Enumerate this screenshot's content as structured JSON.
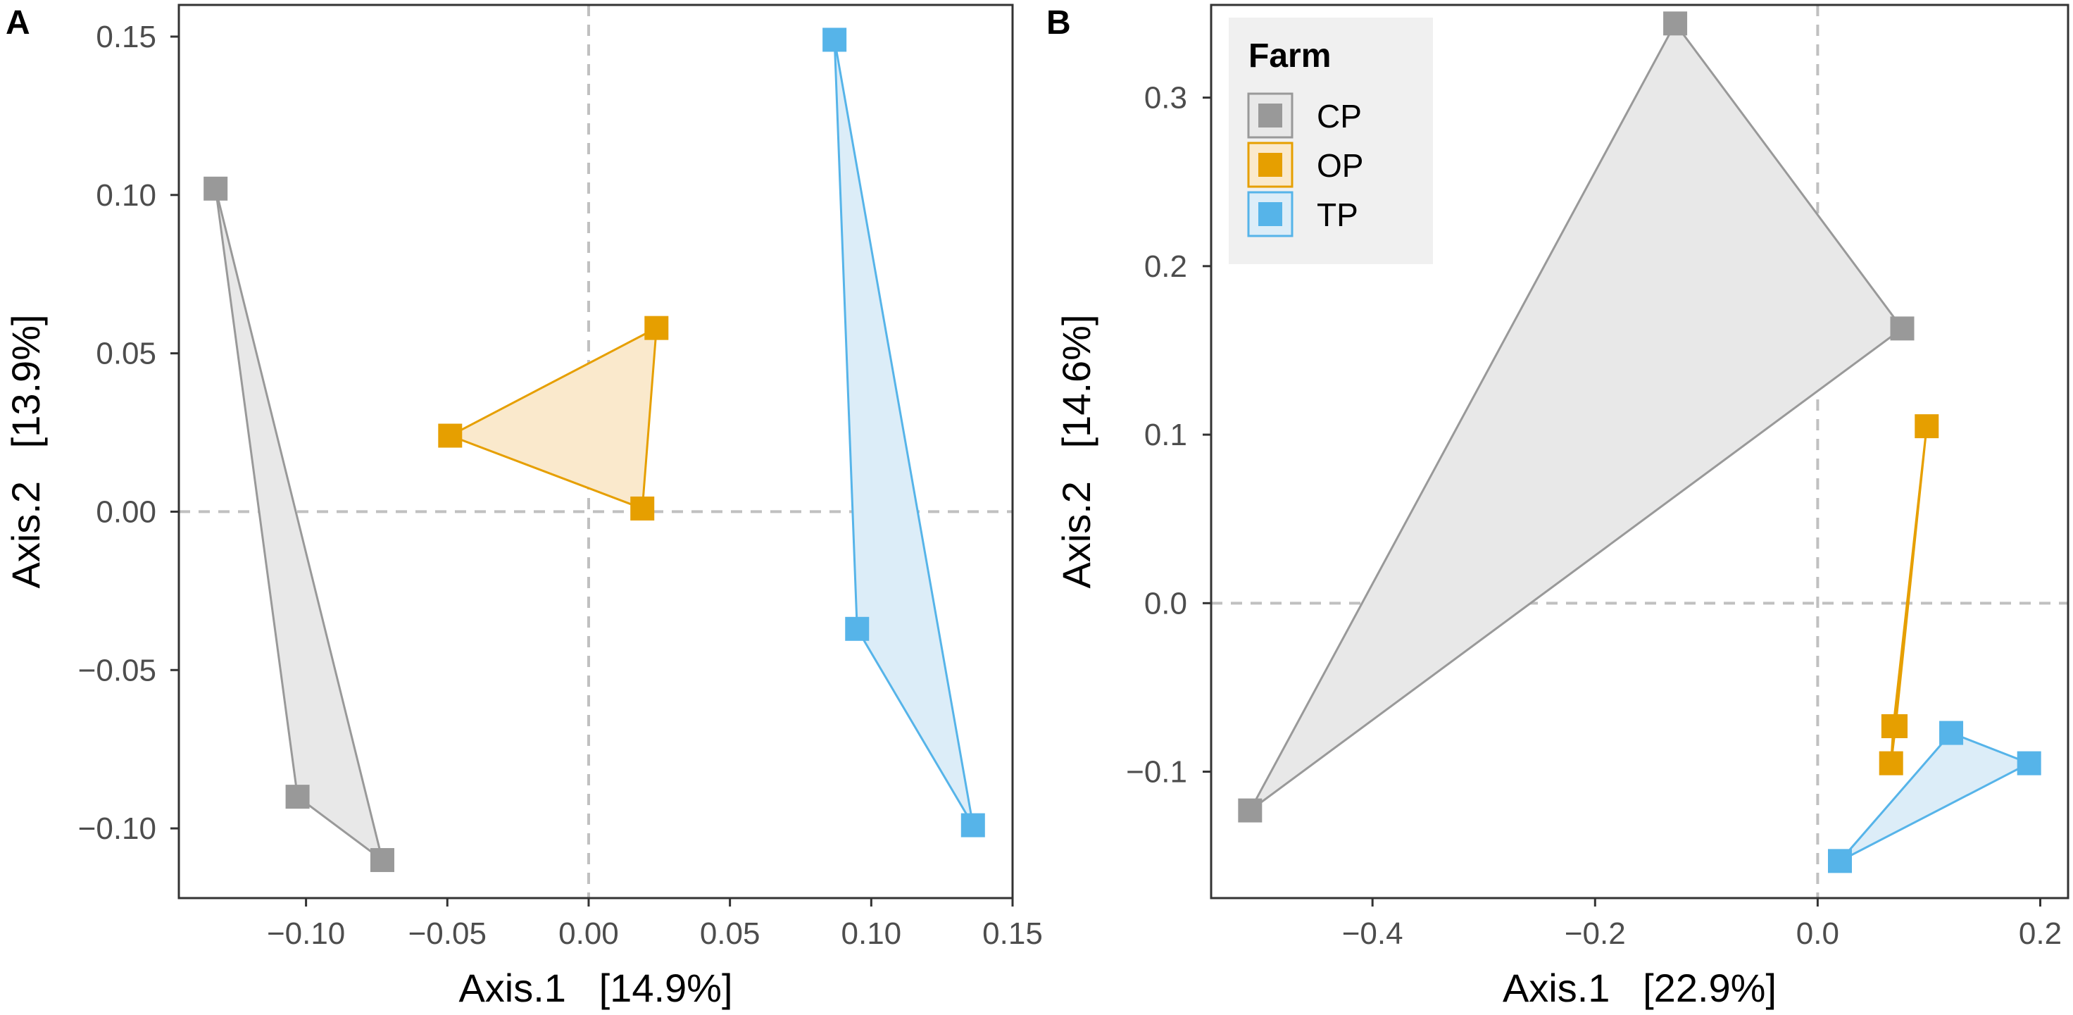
{
  "figure": {
    "legend": {
      "title": "Farm",
      "entries": [
        {
          "key": "CP",
          "label": "CP"
        },
        {
          "key": "OP",
          "label": "OP"
        },
        {
          "key": "TP",
          "label": "TP"
        }
      ]
    },
    "colors": {
      "CP": {
        "stroke": "#999999",
        "fill": "#e8e8e8"
      },
      "OP": {
        "stroke": "#E69F00",
        "fill": "#fae9cc"
      },
      "TP": {
        "stroke": "#56B4E9",
        "fill": "#dcedf8"
      },
      "reference_line": "#c0c0c0",
      "frame": "#333333",
      "tick_text": "#4d4d4d"
    }
  },
  "chart_data": [
    {
      "type": "scatter",
      "panel": "A",
      "xlabel": "Axis.1   [14.9%]",
      "ylabel": "Axis.2   [13.9%]",
      "xlim": [
        -0.145,
        0.15
      ],
      "ylim": [
        -0.122,
        0.16
      ],
      "xticks": [
        -0.1,
        -0.05,
        0.0,
        0.05,
        0.1,
        0.15
      ],
      "xtick_labels": [
        "−0.10",
        "−0.05",
        "0.00",
        "0.05",
        "0.10",
        "0.15"
      ],
      "yticks": [
        0.15,
        0.1,
        0.05,
        0.0,
        -0.05,
        -0.1
      ],
      "ytick_labels": [
        "0.15",
        "0.10",
        "0.05",
        "0.00",
        "−0.05",
        "−0.10"
      ],
      "reference_lines": {
        "x": 0,
        "y": 0
      },
      "series": [
        {
          "name": "CP",
          "hull": [
            0,
            1,
            2
          ],
          "points": [
            {
              "x": -0.132,
              "y": 0.102
            },
            {
              "x": -0.103,
              "y": -0.09
            },
            {
              "x": -0.073,
              "y": -0.11
            }
          ]
        },
        {
          "name": "OP",
          "hull": [
            0,
            1,
            2
          ],
          "points": [
            {
              "x": -0.049,
              "y": 0.024
            },
            {
              "x": 0.024,
              "y": 0.058
            },
            {
              "x": 0.019,
              "y": 0.001
            }
          ]
        },
        {
          "name": "TP",
          "hull": [
            0,
            1,
            2
          ],
          "points": [
            {
              "x": 0.087,
              "y": 0.149
            },
            {
              "x": 0.095,
              "y": -0.037
            },
            {
              "x": 0.136,
              "y": -0.099
            }
          ]
        }
      ]
    },
    {
      "type": "scatter",
      "panel": "B",
      "xlabel": "Axis.1   [22.9%]",
      "ylabel": "Axis.2   [14.6%]",
      "xlim": [
        -0.545,
        0.225
      ],
      "ylim": [
        -0.175,
        0.355
      ],
      "xticks": [
        -0.4,
        -0.2,
        0.0,
        0.2
      ],
      "xtick_labels": [
        "−0.4",
        "−0.2",
        "0.0",
        "0.2"
      ],
      "yticks": [
        0.3,
        0.2,
        0.1,
        0.0,
        -0.1
      ],
      "ytick_labels": [
        "0.3",
        "0.2",
        "0.1",
        "0.0",
        "−0.1"
      ],
      "reference_lines": {
        "x": 0,
        "y": 0
      },
      "series": [
        {
          "name": "CP",
          "hull": [
            0,
            1,
            2
          ],
          "points": [
            {
              "x": -0.128,
              "y": 0.344
            },
            {
              "x": 0.076,
              "y": 0.163
            },
            {
              "x": -0.51,
              "y": -0.123
            }
          ]
        },
        {
          "name": "OP",
          "hull": [
            0,
            1,
            2,
            3
          ],
          "points": [
            {
              "x": 0.098,
              "y": 0.105
            },
            {
              "x": 0.068,
              "y": -0.073
            },
            {
              "x": 0.066,
              "y": -0.095
            },
            {
              "x": 0.07,
              "y": -0.073
            }
          ]
        },
        {
          "name": "TP",
          "hull": [
            0,
            1,
            2
          ],
          "points": [
            {
              "x": 0.12,
              "y": -0.077
            },
            {
              "x": 0.19,
              "y": -0.095
            },
            {
              "x": 0.02,
              "y": -0.153
            }
          ]
        }
      ]
    }
  ]
}
